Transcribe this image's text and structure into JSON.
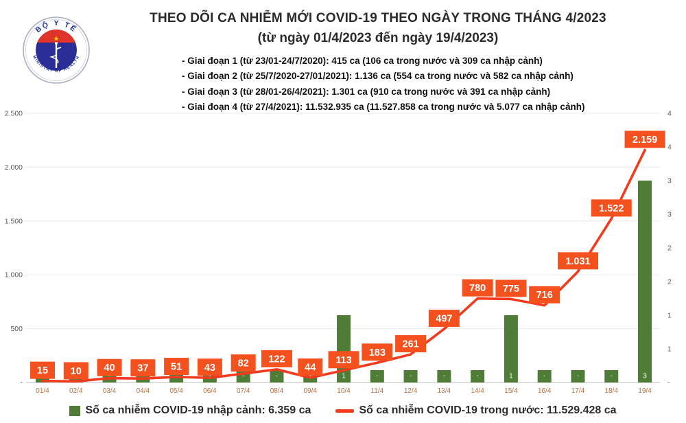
{
  "logo": {
    "top_arc": "BỘ Y TẾ",
    "bottom_arc": "MINISTRY OF HEALTH"
  },
  "header": {
    "title": "THEO DÕI CA NHIỄM MỚI COVID-19 THEO NGÀY TRONG THÁNG 4/2023",
    "subtitle": "(từ ngày 01/4/2023 đến ngày 19/4/2023)",
    "phases": [
      "- Giai đoạn 1 (từ 23/01-24/7/2020): 415 ca (106 ca trong nước và 309 ca nhập cảnh)",
      "- Giai đoạn 2 (từ 25/7/2020-27/01/2021): 1.136 ca (554 ca trong nước và 582 ca nhập cảnh)",
      "- Giai đoạn 3 (từ 28/01-26/4/2021): 1.301 ca (910 ca trong nước và 391 ca nhập cảnh)",
      "- Giai đoạn 4 (từ 27/4/2021): 11.532.935 ca (11.527.858 ca trong nước và 5.077 ca nhập cảnh)"
    ]
  },
  "chart_data": {
    "type": "combo-bar-line",
    "categories": [
      "01/4",
      "02/4",
      "03/4",
      "04/4",
      "05/4",
      "06/4",
      "07/4",
      "08/4",
      "09/4",
      "10/4",
      "11/4",
      "12/4",
      "13/4",
      "14/4",
      "15/4",
      "16/4",
      "17/4",
      "18/4",
      "19/4"
    ],
    "series": [
      {
        "name": "Số ca nhiễm COVID-19 nhập cảnh",
        "type": "bar",
        "axis": "right",
        "values": [
          0,
          0,
          0,
          0,
          0,
          0,
          0,
          0,
          0,
          1,
          0,
          0,
          0,
          0,
          1,
          0,
          0,
          0,
          3
        ],
        "labels": [
          "-",
          "-",
          "-",
          "-",
          "-",
          "-",
          "-",
          "-",
          "-",
          "1",
          "-",
          "-",
          "-",
          "-",
          "1",
          "-",
          "-",
          "-",
          "3"
        ]
      },
      {
        "name": "Số ca nhiễm COVID-19 trong nước",
        "type": "line",
        "axis": "left",
        "values": [
          15,
          10,
          40,
          37,
          51,
          43,
          82,
          122,
          44,
          113,
          183,
          261,
          497,
          780,
          775,
          716,
          1031,
          1522,
          2159
        ],
        "labels": [
          "15",
          "10",
          "40",
          "37",
          "51",
          "43",
          "82",
          "122",
          "44",
          "113",
          "183",
          "261",
          "497",
          "780",
          "775",
          "716",
          "1.031",
          "1.522",
          "2.159"
        ]
      }
    ],
    "left_axis": {
      "min": 0,
      "max": 2500,
      "ticks": [
        "2.500",
        "2.000",
        "1.500",
        "1.000",
        "500",
        "-"
      ]
    },
    "right_axis": {
      "min": 0,
      "max": 4,
      "ticks": [
        "4",
        "4",
        "3",
        "3",
        "2",
        "2",
        "1",
        "1",
        "-"
      ]
    },
    "grid": "horizontal-major",
    "legend_position": "bottom",
    "colors": {
      "bar": "#4f7d38",
      "line": "#f43a1e",
      "label_bg": "#f4511e",
      "label_text": "#ffffff",
      "axis_text": "#595959",
      "date_text": "#b86f3e",
      "gridline": "#e8e8e8",
      "baseline": "#c9c9c9"
    }
  },
  "legend": [
    {
      "swatch": "green-square",
      "label": "Số ca nhiễm COVID-19 nhập cảnh: 6.359 ca"
    },
    {
      "swatch": "red-line",
      "label": "Số ca nhiễm COVID-19 trong nước: 11.529.428 ca"
    }
  ]
}
